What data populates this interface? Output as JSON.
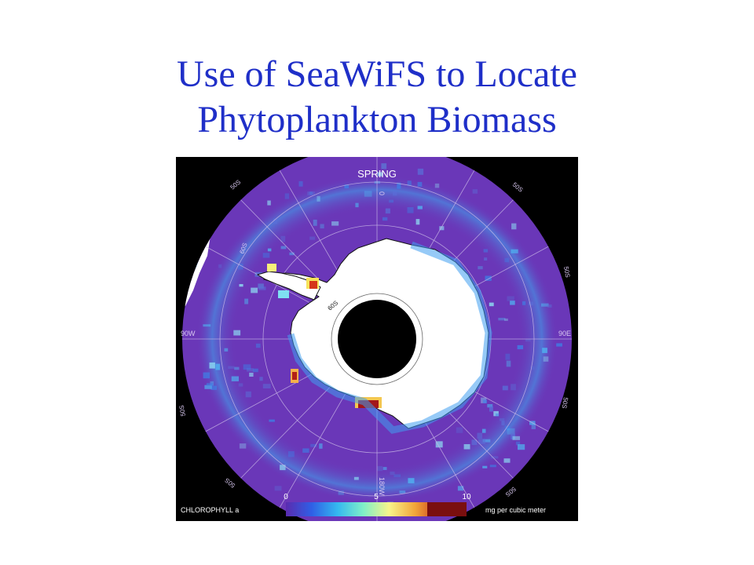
{
  "slide": {
    "title_line1": "Use of SeaWiFS to Locate",
    "title_line2": "Phytoplankton Biomass"
  },
  "map": {
    "season": "SPRING",
    "longitude_labels": {
      "top": "0",
      "left": "90W",
      "right": "90E",
      "bottom": "180W"
    },
    "latitude_labels": {
      "upper_left": "50S",
      "upper_left_inner": "60S",
      "upper_right": "50S",
      "right_upper": "50S",
      "right_lower": "50S",
      "left_lower": "50S",
      "lower_left": "50S",
      "lower_right": "50S",
      "inner_ring": "60S"
    },
    "colors": {
      "ocean": "#6a37b8",
      "ice": "#ffffff",
      "pole": "#000000",
      "frame": "#000000"
    }
  },
  "legend": {
    "variable": "CHLOROPHYLL a",
    "ticks": [
      "0",
      "5",
      "10"
    ],
    "tick_values": [
      0,
      5,
      10
    ],
    "range": [
      0,
      10
    ],
    "unit": "mg per cubic meter",
    "colors": [
      "#5a2bb0",
      "#2f5fe6",
      "#34b8f0",
      "#7ff0c8",
      "#f8f48a",
      "#f2a63a",
      "#c8351a",
      "#7a0f0f"
    ]
  }
}
